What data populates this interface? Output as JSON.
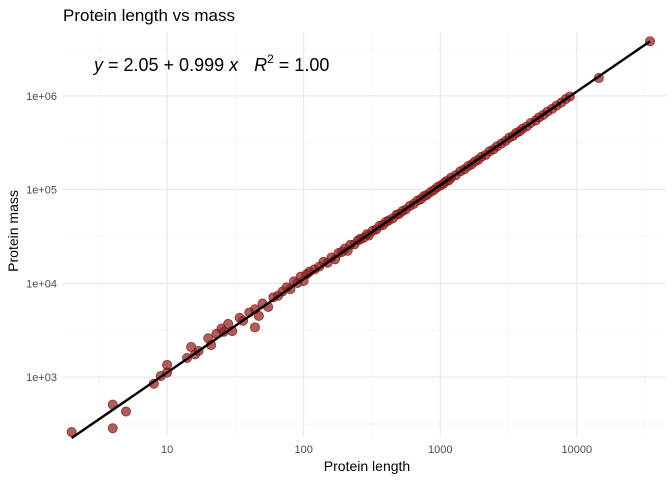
{
  "chart_data": {
    "type": "scatter",
    "title": "Protein length vs mass",
    "xlabel": "Protein length",
    "ylabel": "Protein mass",
    "x_scale": "log10",
    "y_scale": "log10",
    "xlim": [
      1.7,
      45000
    ],
    "ylim": [
      230,
      4800000
    ],
    "x_ticks": [
      10,
      100,
      1000,
      10000
    ],
    "x_tick_labels": [
      "10",
      "100",
      "1000",
      "10000"
    ],
    "y_ticks": [
      1000,
      10000,
      100000,
      1000000
    ],
    "y_tick_labels": [
      "1e+03",
      "1e+04",
      "1e+05",
      "1e+06"
    ],
    "grid": true,
    "point_color": "#8b1a1a",
    "line_color": "#000000",
    "annotation": {
      "y_var": "y",
      "lhs_rest": " = 2.05 + 0.999 ",
      "x_var": "x",
      "r_var": "R",
      "r_exp": "2",
      "rhs": " = 1.00"
    },
    "fit": {
      "intercept_log10": 2.05,
      "slope": 0.999,
      "x_range": [
        2,
        34350
      ]
    },
    "points": [
      {
        "x": 2,
        "y": 260
      },
      {
        "x": 4,
        "y": 510
      },
      {
        "x": 4,
        "y": 285
      },
      {
        "x": 5,
        "y": 430
      },
      {
        "x": 8,
        "y": 850
      },
      {
        "x": 9,
        "y": 1030
      },
      {
        "x": 10,
        "y": 1120
      },
      {
        "x": 10,
        "y": 1350
      },
      {
        "x": 14,
        "y": 1600
      },
      {
        "x": 15,
        "y": 2100
      },
      {
        "x": 16,
        "y": 1750
      },
      {
        "x": 17,
        "y": 1900
      },
      {
        "x": 20,
        "y": 2600
      },
      {
        "x": 21,
        "y": 2200
      },
      {
        "x": 23,
        "y": 2900
      },
      {
        "x": 25,
        "y": 3300
      },
      {
        "x": 26,
        "y": 3050
      },
      {
        "x": 28,
        "y": 3700
      },
      {
        "x": 30,
        "y": 3100
      },
      {
        "x": 34,
        "y": 4300
      },
      {
        "x": 36,
        "y": 4000
      },
      {
        "x": 40,
        "y": 4900
      },
      {
        "x": 44,
        "y": 5300
      },
      {
        "x": 44,
        "y": 3400
      },
      {
        "x": 47,
        "y": 4500
      },
      {
        "x": 50,
        "y": 6100
      },
      {
        "x": 55,
        "y": 5600
      },
      {
        "x": 60,
        "y": 7100
      },
      {
        "x": 65,
        "y": 7400
      },
      {
        "x": 70,
        "y": 8200
      },
      {
        "x": 75,
        "y": 9100
      },
      {
        "x": 80,
        "y": 8700
      },
      {
        "x": 85,
        "y": 10500
      },
      {
        "x": 90,
        "y": 10100
      },
      {
        "x": 95,
        "y": 11800
      },
      {
        "x": 100,
        "y": 10600
      },
      {
        "x": 105,
        "y": 12500
      },
      {
        "x": 110,
        "y": 13300
      },
      {
        "x": 120,
        "y": 14100
      },
      {
        "x": 130,
        "y": 15100
      },
      {
        "x": 140,
        "y": 17000
      },
      {
        "x": 150,
        "y": 16600
      },
      {
        "x": 160,
        "y": 18900
      },
      {
        "x": 170,
        "y": 18100
      },
      {
        "x": 180,
        "y": 21100
      },
      {
        "x": 190,
        "y": 21600
      },
      {
        "x": 200,
        "y": 23500
      },
      {
        "x": 210,
        "y": 22300
      },
      {
        "x": 220,
        "y": 25800
      },
      {
        "x": 235,
        "y": 26100
      },
      {
        "x": 250,
        "y": 28700
      },
      {
        "x": 260,
        "y": 29800
      },
      {
        "x": 275,
        "y": 30600
      },
      {
        "x": 290,
        "y": 33400
      },
      {
        "x": 300,
        "y": 32400
      },
      {
        "x": 320,
        "y": 36300
      },
      {
        "x": 340,
        "y": 37600
      },
      {
        "x": 360,
        "y": 41200
      },
      {
        "x": 380,
        "y": 42000
      },
      {
        "x": 400,
        "y": 45300
      },
      {
        "x": 420,
        "y": 47000
      },
      {
        "x": 450,
        "y": 49500
      },
      {
        "x": 480,
        "y": 54200
      },
      {
        "x": 500,
        "y": 55100
      },
      {
        "x": 530,
        "y": 59100
      },
      {
        "x": 560,
        "y": 61400
      },
      {
        "x": 600,
        "y": 67200
      },
      {
        "x": 640,
        "y": 70500
      },
      {
        "x": 680,
        "y": 76300
      },
      {
        "x": 720,
        "y": 79100
      },
      {
        "x": 760,
        "y": 85200
      },
      {
        "x": 800,
        "y": 88000
      },
      {
        "x": 850,
        "y": 94300
      },
      {
        "x": 900,
        "y": 99200
      },
      {
        "x": 950,
        "y": 106000
      },
      {
        "x": 1000,
        "y": 110500
      },
      {
        "x": 1050,
        "y": 114800
      },
      {
        "x": 1100,
        "y": 122400
      },
      {
        "x": 1150,
        "y": 125000
      },
      {
        "x": 1200,
        "y": 133800
      },
      {
        "x": 1300,
        "y": 142600
      },
      {
        "x": 1400,
        "y": 156400
      },
      {
        "x": 1500,
        "y": 164700
      },
      {
        "x": 1600,
        "y": 178000
      },
      {
        "x": 1700,
        "y": 186400
      },
      {
        "x": 1800,
        "y": 200000
      },
      {
        "x": 1900,
        "y": 208400
      },
      {
        "x": 2000,
        "y": 223500
      },
      {
        "x": 2150,
        "y": 234600
      },
      {
        "x": 2300,
        "y": 256800
      },
      {
        "x": 2450,
        "y": 268100
      },
      {
        "x": 2600,
        "y": 289400
      },
      {
        "x": 2800,
        "y": 309500
      },
      {
        "x": 3000,
        "y": 330300
      },
      {
        "x": 3200,
        "y": 357900
      },
      {
        "x": 3400,
        "y": 372100
      },
      {
        "x": 3600,
        "y": 402200
      },
      {
        "x": 3800,
        "y": 416800
      },
      {
        "x": 4000,
        "y": 445600
      },
      {
        "x": 4300,
        "y": 472900
      },
      {
        "x": 4600,
        "y": 513400
      },
      {
        "x": 5000,
        "y": 548200
      },
      {
        "x": 5300,
        "y": 590400
      },
      {
        "x": 5700,
        "y": 627600
      },
      {
        "x": 6100,
        "y": 680100
      },
      {
        "x": 6600,
        "y": 726500
      },
      {
        "x": 7100,
        "y": 788000
      },
      {
        "x": 7700,
        "y": 846700
      },
      {
        "x": 8300,
        "y": 925300
      },
      {
        "x": 8900,
        "y": 985000
      },
      {
        "x": 14500,
        "y": 1550000
      },
      {
        "x": 34350,
        "y": 3820000
      }
    ]
  }
}
